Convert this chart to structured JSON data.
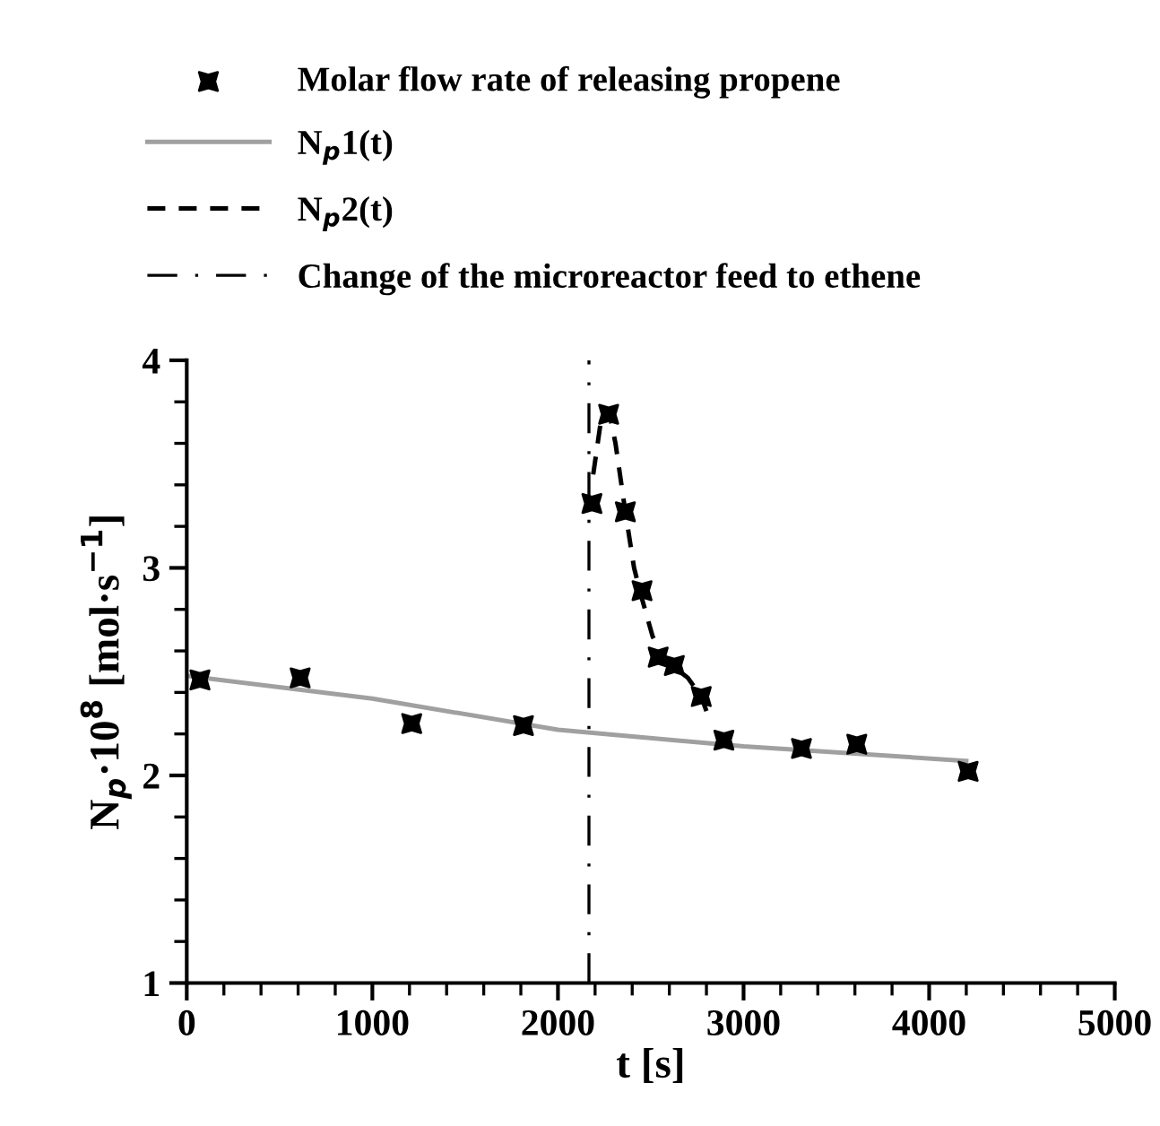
{
  "chart_data": {
    "type": "scatter",
    "xlabel": "t [s]",
    "ylabel": "N$_{p}$·10$^{8}$ [mol·s$^{−1}$]",
    "xlim": [
      0,
      5000
    ],
    "xticks": [
      0,
      1000,
      2000,
      3000,
      4000,
      5000
    ],
    "ylim": [
      1,
      4
    ],
    "yticks": [
      1,
      2,
      3,
      4
    ],
    "grid": false,
    "legend": "top",
    "series": [
      {
        "name": "Molar flow rate of releasing propene",
        "marker": "star",
        "color": "#000000",
        "x": [
          71,
          611,
          1212,
          1814,
          2183,
          2273,
          2363,
          2453,
          2540,
          2627,
          2772,
          2894,
          3312,
          3610,
          4210
        ],
        "values": [
          2.46,
          2.47,
          2.25,
          2.24,
          3.31,
          3.74,
          3.27,
          2.89,
          2.57,
          2.53,
          2.38,
          2.17,
          2.13,
          2.15,
          2.02
        ]
      },
      {
        "name": "N$_{p}$1(t)",
        "type": "line",
        "marker": "none",
        "line_style": "solid",
        "color": "#a0a0a0",
        "x": [
          0,
          1000,
          2000,
          3000,
          4200
        ],
        "values": [
          2.48,
          2.37,
          2.22,
          2.14,
          2.07
        ]
      },
      {
        "name": "N$_{p}$2(t)",
        "type": "line",
        "marker": "none",
        "line_style": "dashed",
        "color": "#000000",
        "x": [
          2190,
          2230,
          2273,
          2310,
          2363,
          2410,
          2453,
          2510,
          2560,
          2630,
          2700,
          2772,
          2800
        ],
        "values": [
          3.45,
          3.7,
          3.76,
          3.6,
          3.27,
          3.0,
          2.85,
          2.67,
          2.58,
          2.52,
          2.47,
          2.38,
          2.31
        ]
      }
    ],
    "ref_lines": [
      {
        "axis": "x",
        "value": 2167,
        "label": "Change of the microreactor feed to ethene",
        "color": "#000000",
        "line_style": "dashdot"
      }
    ]
  }
}
